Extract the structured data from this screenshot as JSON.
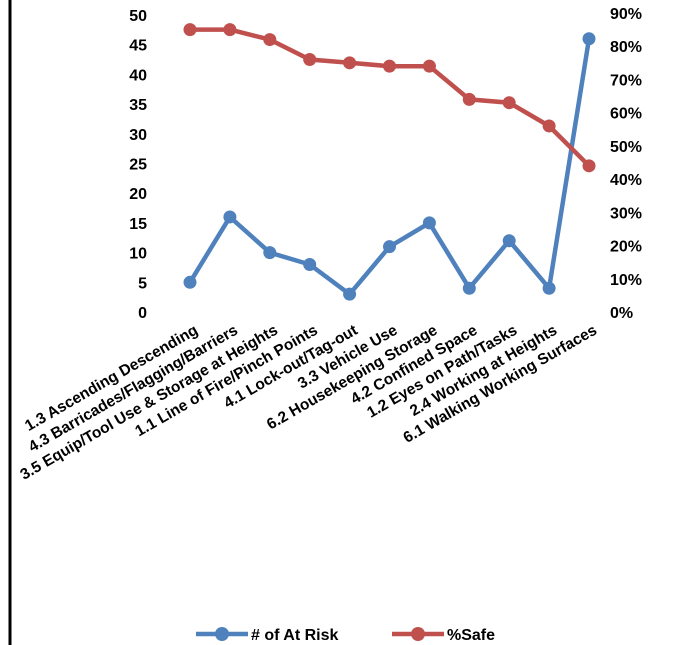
{
  "chart_data": {
    "type": "line",
    "categories": [
      "1.3 Ascending Descending",
      "4.3 Barricades/Flagging/Barriers",
      "3.5 Equip/Tool Use & Storage at Heights",
      "1.1 Line of Fire/Pinch Points",
      "4.1 Lock-out/Tag-out",
      "3.3 Vehicle Use",
      "6.2 Housekeeping Storage",
      "4.2 Confined Space",
      "1.2 Eyes on Path/Tasks",
      "2.4 Working at Heights",
      "6.1 Walking Working Surfaces"
    ],
    "series": [
      {
        "name": "# of At Risk",
        "axis": "left",
        "color": "#4f81bd",
        "values": [
          5,
          16,
          10,
          8,
          3,
          11,
          15,
          4,
          12,
          4,
          46
        ]
      },
      {
        "name": "%Safe",
        "axis": "right",
        "color": "#c0504d",
        "values": [
          0.85,
          0.85,
          0.82,
          0.76,
          0.75,
          0.74,
          0.74,
          0.64,
          0.63,
          0.56,
          0.44
        ]
      }
    ],
    "left_axis": {
      "ylim": [
        0,
        50
      ],
      "ticks": [
        "0",
        "5",
        "10",
        "15",
        "20",
        "25",
        "30",
        "35",
        "40",
        "45",
        "50"
      ]
    },
    "right_axis": {
      "ylim": [
        0,
        0.9
      ],
      "ticks": [
        "0%",
        "10%",
        "20%",
        "30%",
        "40%",
        "50%",
        "60%",
        "70%",
        "80%",
        "90%"
      ]
    },
    "grid": false,
    "legend_position": "bottom"
  }
}
